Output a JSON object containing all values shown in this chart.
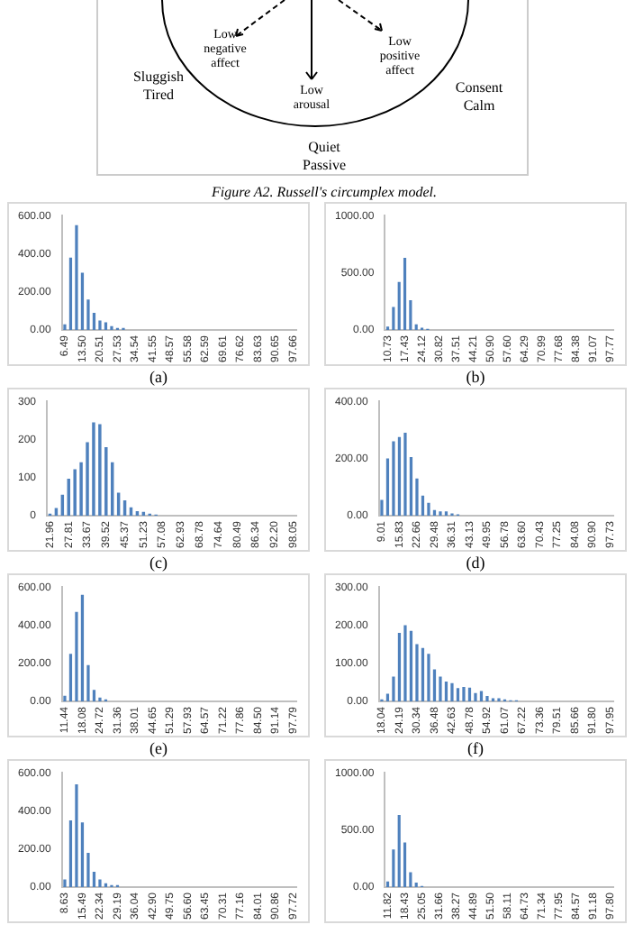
{
  "chart_data": [
    {
      "type": "other",
      "annotations": [
        "Low negative affect",
        "Low arousal",
        "Low positive affect",
        "Sluggish Tired",
        "Consent Calm",
        "Quiet Passive",
        "Figure A2. Russell's circumplex model."
      ]
    },
    {
      "type": "bar",
      "title": "(a)",
      "color": "#4f81bd",
      "ylim": [
        0,
        600
      ],
      "yticks": [
        {
          "value": 0,
          "label": "0.00"
        },
        {
          "value": 200,
          "label": "200.00"
        },
        {
          "value": 400,
          "label": "400.00"
        },
        {
          "value": 600,
          "label": "600.00"
        }
      ],
      "categories": [
        "6.49",
        null,
        null,
        "13.50",
        null,
        null,
        "20.51",
        null,
        null,
        "27.53",
        null,
        null,
        "34.54",
        null,
        null,
        "41.55",
        null,
        null,
        "48.57",
        null,
        null,
        "55.58",
        null,
        null,
        "62.59",
        null,
        null,
        "69.61",
        null,
        null,
        "76.62",
        null,
        null,
        "83.63",
        null,
        null,
        "90.65",
        null,
        null,
        "97.66"
      ],
      "values": [
        30,
        380,
        550,
        300,
        160,
        90,
        50,
        40,
        20,
        10,
        10,
        0,
        0,
        0,
        0,
        0,
        0,
        0,
        0,
        0,
        0,
        0,
        0,
        0,
        0,
        0,
        0,
        0,
        0,
        0,
        0,
        0,
        0,
        0,
        0,
        0,
        0,
        0,
        0,
        0
      ]
    },
    {
      "type": "bar",
      "title": "(b)",
      "color": "#4f81bd",
      "ylim": [
        0,
        1000
      ],
      "yticks": [
        {
          "value": 0,
          "label": "0.00"
        },
        {
          "value": 500,
          "label": "500.00"
        },
        {
          "value": 1000,
          "label": "1000.00"
        }
      ],
      "categories": [
        "10.73",
        null,
        null,
        "17.43",
        null,
        null,
        "24.12",
        null,
        null,
        "30.82",
        null,
        null,
        "37.51",
        null,
        null,
        "44.21",
        null,
        null,
        "50.90",
        null,
        null,
        "57.60",
        null,
        null,
        "64.29",
        null,
        null,
        "70.99",
        null,
        null,
        "77.68",
        null,
        null,
        "84.38",
        null,
        null,
        "91.07",
        null,
        null,
        "97.77"
      ],
      "values": [
        30,
        200,
        420,
        630,
        260,
        50,
        20,
        10,
        0,
        0,
        0,
        0,
        0,
        0,
        0,
        0,
        0,
        0,
        0,
        0,
        0,
        0,
        0,
        0,
        0,
        0,
        0,
        0,
        0,
        0,
        0,
        0,
        0,
        0,
        0,
        0,
        0,
        0,
        0,
        0
      ]
    },
    {
      "type": "bar",
      "title": "(c)",
      "color": "#4f81bd",
      "ylim": [
        0,
        300
      ],
      "yticks": [
        0,
        100,
        200,
        300
      ],
      "categories": [
        "21.96",
        null,
        null,
        "27.81",
        null,
        null,
        "33.67",
        null,
        null,
        "39.52",
        null,
        null,
        "45.37",
        null,
        null,
        "51.23",
        null,
        null,
        "57.08",
        null,
        null,
        "62.93",
        null,
        null,
        "68.78",
        null,
        null,
        "74.64",
        null,
        null,
        "80.49",
        null,
        null,
        "86.34",
        null,
        null,
        "92.20",
        null,
        null,
        "98.05"
      ],
      "values": [
        5,
        20,
        55,
        97,
        122,
        140,
        193,
        245,
        240,
        180,
        140,
        60,
        40,
        22,
        12,
        10,
        5,
        3,
        0,
        0,
        0,
        0,
        0,
        0,
        0,
        0,
        0,
        0,
        0,
        0,
        0,
        0,
        0,
        0,
        0,
        0,
        0,
        0,
        0,
        0
      ]
    },
    {
      "type": "bar",
      "title": "(d)",
      "color": "#4f81bd",
      "ylim": [
        0,
        400
      ],
      "yticks": [
        {
          "value": 0,
          "label": "0.00"
        },
        {
          "value": 200,
          "label": "200.00"
        },
        {
          "value": 400,
          "label": "400.00"
        }
      ],
      "categories": [
        "9.01",
        null,
        null,
        "15.83",
        null,
        null,
        "22.66",
        null,
        null,
        "29.48",
        null,
        null,
        "36.31",
        null,
        null,
        "43.13",
        null,
        null,
        "49.95",
        null,
        null,
        "56.78",
        null,
        null,
        "63.60",
        null,
        null,
        "70.43",
        null,
        null,
        "77.25",
        null,
        null,
        "84.08",
        null,
        null,
        "90.90",
        null,
        null,
        "97.73"
      ],
      "values": [
        55,
        200,
        260,
        275,
        290,
        205,
        130,
        70,
        45,
        20,
        15,
        15,
        8,
        5,
        0,
        0,
        0,
        0,
        0,
        0,
        0,
        0,
        0,
        0,
        0,
        0,
        0,
        0,
        0,
        0,
        0,
        0,
        0,
        0,
        0,
        0,
        0,
        0,
        0,
        0
      ]
    },
    {
      "type": "bar",
      "title": "(e)",
      "color": "#4f81bd",
      "ylim": [
        0,
        600
      ],
      "yticks": [
        {
          "value": 0,
          "label": "0.00"
        },
        {
          "value": 200,
          "label": "200.00"
        },
        {
          "value": 400,
          "label": "400.00"
        },
        {
          "value": 600,
          "label": "600.00"
        }
      ],
      "categories": [
        "11.44",
        null,
        null,
        "18.08",
        null,
        null,
        "24.72",
        null,
        null,
        "31.36",
        null,
        null,
        "38.01",
        null,
        null,
        "44.65",
        null,
        null,
        "51.29",
        null,
        null,
        "57.93",
        null,
        null,
        "64.57",
        null,
        null,
        "71.22",
        null,
        null,
        "77.86",
        null,
        null,
        "84.50",
        null,
        null,
        "91.14",
        null,
        null,
        "97.79"
      ],
      "values": [
        30,
        250,
        470,
        560,
        190,
        60,
        20,
        10,
        0,
        0,
        0,
        0,
        0,
        0,
        0,
        0,
        0,
        0,
        0,
        0,
        0,
        0,
        0,
        0,
        0,
        0,
        0,
        0,
        0,
        0,
        0,
        0,
        0,
        0,
        0,
        0,
        0,
        0,
        0,
        0
      ]
    },
    {
      "type": "bar",
      "title": "(f)",
      "color": "#4f81bd",
      "ylim": [
        0,
        300
      ],
      "yticks": [
        {
          "value": 0,
          "label": "0.00"
        },
        {
          "value": 100,
          "label": "100.00"
        },
        {
          "value": 200,
          "label": "200.00"
        },
        {
          "value": 300,
          "label": "300.00"
        }
      ],
      "categories": [
        "18.04",
        null,
        null,
        "24.19",
        null,
        null,
        "30.34",
        null,
        null,
        "36.48",
        null,
        null,
        "42.63",
        null,
        null,
        "48.78",
        null,
        null,
        "54.92",
        null,
        null,
        "61.07",
        null,
        null,
        "67.22",
        null,
        null,
        "73.36",
        null,
        null,
        "79.51",
        null,
        null,
        "85.66",
        null,
        null,
        "91.80",
        null,
        null,
        "97.95"
      ],
      "values": [
        5,
        20,
        65,
        180,
        200,
        185,
        150,
        140,
        125,
        84,
        65,
        52,
        48,
        35,
        38,
        36,
        22,
        27,
        14,
        8,
        8,
        5,
        3,
        3,
        0,
        0,
        0,
        0,
        0,
        0,
        0,
        0,
        0,
        0,
        0,
        0,
        0,
        0,
        0,
        0
      ]
    },
    {
      "type": "bar",
      "color": "#4f81bd",
      "ylim": [
        0,
        600
      ],
      "yticks": [
        {
          "value": 0,
          "label": "0.00"
        },
        {
          "value": 200,
          "label": "200.00"
        },
        {
          "value": 400,
          "label": "400.00"
        },
        {
          "value": 600,
          "label": "600.00"
        }
      ],
      "categories": [
        "8.63",
        null,
        null,
        "15.49",
        null,
        null,
        "22.34",
        null,
        null,
        "29.19",
        null,
        null,
        "36.04",
        null,
        null,
        "42.90",
        null,
        null,
        "49.75",
        null,
        null,
        "56.60",
        null,
        null,
        "63.45",
        null,
        null,
        "70.31",
        null,
        null,
        "77.16",
        null,
        null,
        "84.01",
        null,
        null,
        "90.86",
        null,
        null,
        "97.72"
      ],
      "values": [
        40,
        350,
        540,
        340,
        180,
        80,
        40,
        20,
        10,
        10,
        0,
        0,
        0,
        0,
        0,
        0,
        0,
        0,
        0,
        0,
        0,
        0,
        0,
        0,
        0,
        0,
        0,
        0,
        0,
        0,
        0,
        0,
        0,
        0,
        0,
        0,
        0,
        0,
        0,
        0
      ]
    },
    {
      "type": "bar",
      "color": "#4f81bd",
      "ylim": [
        0,
        1000
      ],
      "yticks": [
        {
          "value": 0,
          "label": "0.00"
        },
        {
          "value": 500,
          "label": "500.00"
        },
        {
          "value": 1000,
          "label": "1000.00"
        }
      ],
      "categories": [
        "11.82",
        null,
        null,
        "18.43",
        null,
        null,
        "25.05",
        null,
        null,
        "31.66",
        null,
        null,
        "38.27",
        null,
        null,
        "44.89",
        null,
        null,
        "51.50",
        null,
        null,
        "58.11",
        null,
        null,
        "64.73",
        null,
        null,
        "71.34",
        null,
        null,
        "77.95",
        null,
        null,
        "84.57",
        null,
        null,
        "91.18",
        null,
        null,
        "97.80"
      ],
      "values": [
        50,
        330,
        630,
        390,
        130,
        40,
        10,
        0,
        0,
        0,
        0,
        0,
        0,
        0,
        0,
        0,
        0,
        0,
        0,
        0,
        0,
        0,
        0,
        0,
        0,
        0,
        0,
        0,
        0,
        0,
        0,
        0,
        0,
        0,
        0,
        0,
        0,
        0,
        0,
        0
      ]
    }
  ]
}
